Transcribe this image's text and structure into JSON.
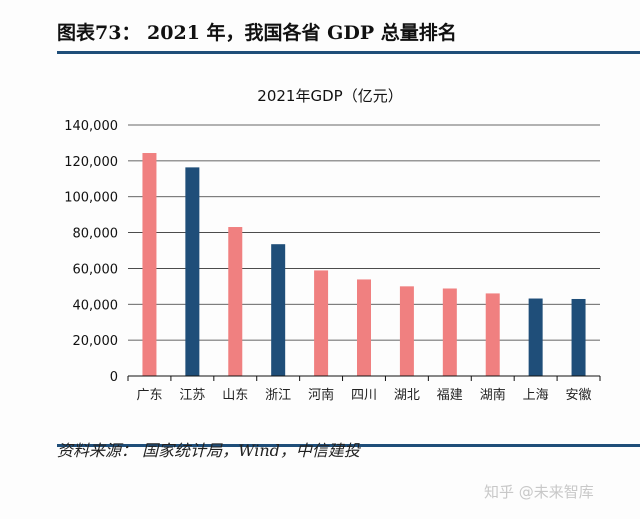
{
  "header": {
    "title": "图表73：  2021 年，我国各省 GDP 总量排名"
  },
  "footer": {
    "source": "资料来源：  国家统计局，Wind，中信建投",
    "watermark": "知乎 @未来智库"
  },
  "colors": {
    "pink": "#f08080",
    "navy": "#1f4e79",
    "rule": "#1f4e79"
  },
  "chart_data": {
    "type": "bar",
    "title": "2021年GDP（亿元）",
    "categories": [
      "广东",
      "江苏",
      "山东",
      "浙江",
      "河南",
      "四川",
      "湖北",
      "福建",
      "湖南",
      "上海",
      "安徽"
    ],
    "values": [
      124369,
      116364,
      83096,
      73516,
      58887,
      53851,
      50013,
      48810,
      46063,
      43215,
      42959
    ],
    "bar_colors": [
      "pink",
      "navy",
      "pink",
      "navy",
      "pink",
      "pink",
      "pink",
      "pink",
      "pink",
      "navy",
      "navy"
    ],
    "ylim": [
      0,
      140000
    ],
    "yticks": [
      0,
      20000,
      40000,
      60000,
      80000,
      100000,
      120000,
      140000
    ],
    "ytick_labels": [
      "0",
      "20,000",
      "40,000",
      "60,000",
      "80,000",
      "100,000",
      "120,000",
      "140,000"
    ],
    "grid": true,
    "legend": "none"
  }
}
